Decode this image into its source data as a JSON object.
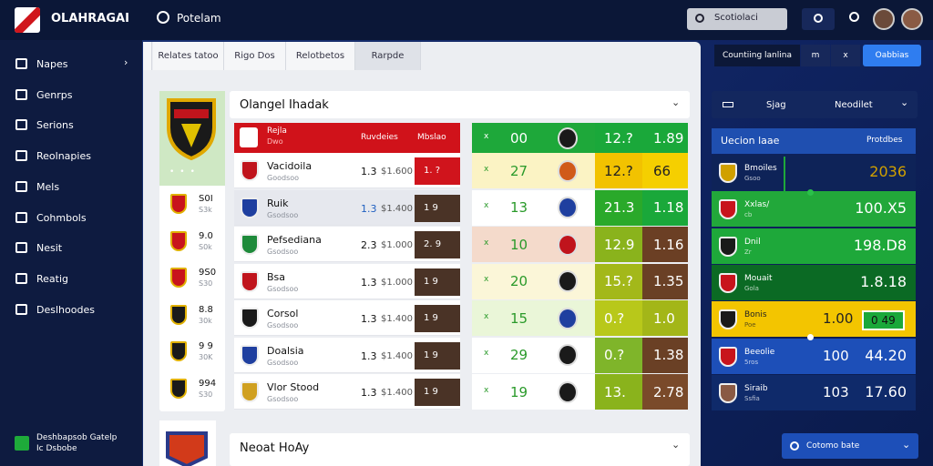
{
  "header": {
    "brand": "OLAHRAGAI",
    "section": "Potelam",
    "search": "Scotiolaci"
  },
  "sidebar": {
    "items": [
      "Napes",
      "Genrps",
      "Serions",
      "Reolnapies",
      "Mels",
      "Cohmbols",
      "Nesit",
      "Reatig",
      "Deslhoodes"
    ],
    "footer": {
      "title": "Deshbapsob Gatelp",
      "subtitle": "Ic Dsbobe"
    }
  },
  "tabs": [
    "Relates tatoo",
    "Rigo Dos",
    "Relotbetos",
    "Rarpde"
  ],
  "toolbar": {
    "filter": "Countiing lanlina",
    "btn1": "m",
    "btn2": "x",
    "primary": "Oabbias"
  },
  "left_list": [
    {
      "a": "S0I",
      "b": "S3k"
    },
    {
      "a": "9.0",
      "b": "S0k"
    },
    {
      "a": "9S0",
      "b": "S30"
    },
    {
      "a": "8.8",
      "b": "30k"
    },
    {
      "a": "9 9",
      "b": "30K"
    },
    {
      "a": "994",
      "b": "S30"
    }
  ],
  "table": {
    "title": "Olangel Ihadak",
    "head": {
      "team": "Rejla",
      "sub": "Dwo",
      "col1": "Ruvdeies",
      "col2": "Mbslao"
    },
    "rows": [
      {
        "team": "Vacidoila",
        "sub": "Goodsoo",
        "a": "1.3",
        "b": "$1.600",
        "c": "1. ?"
      },
      {
        "team": "Ruik",
        "sub": "Gsodsoo",
        "a": "1.3",
        "b": "$1.400",
        "c": "1 9"
      },
      {
        "team": "Pefsediana",
        "sub": "Gsodsoo",
        "a": "2.3",
        "b": "$1.000",
        "c": "2. 9"
      },
      {
        "team": "Bsa",
        "sub": "Gsodsoo",
        "a": "1.3",
        "b": "$1.000",
        "c": "1 9"
      },
      {
        "team": "Corsol",
        "sub": "Gsodsoo",
        "a": "1.3",
        "b": "$1.400",
        "c": "1 9"
      },
      {
        "team": "Doalsia",
        "sub": "Gsodsoo",
        "a": "1.3",
        "b": "$1.400",
        "c": "1 9"
      },
      {
        "team": "Vlor Stood",
        "sub": "Gsodsoo",
        "a": "1.3",
        "b": "$1.400",
        "c": "1 9"
      }
    ]
  },
  "odds": {
    "head": {
      "mark": "x",
      "l": "00",
      "m": "12.?",
      "r": "1.89"
    },
    "rows": [
      {
        "mark": "x",
        "l": "27",
        "m": "12.?",
        "r": "66"
      },
      {
        "mark": "x",
        "l": "13",
        "m": "21.3",
        "r": "1.18"
      },
      {
        "mark": "x",
        "l": "10",
        "m": "12.9",
        "r": "1.16"
      },
      {
        "mark": "x",
        "l": "20",
        "m": "15.?",
        "r": "1.35"
      },
      {
        "mark": "x",
        "l": "15",
        "m": "0.?",
        "r": "1.0"
      },
      {
        "mark": "x",
        "l": "29",
        "m": "0.?",
        "r": "1.38"
      },
      {
        "mark": "x",
        "l": "19",
        "m": "13.",
        "r": "2.78"
      }
    ]
  },
  "right": {
    "select1": "Sjag",
    "select2": "Neodilet",
    "head": {
      "title": "Uecion laae",
      "right": "Protdbes"
    },
    "rows": [
      {
        "name": "Bmoiles",
        "sub": "Gsoo",
        "mid": "",
        "val": "2036"
      },
      {
        "name": "Xxlas/",
        "sub": "cb",
        "mid": "",
        "val": "100.X5"
      },
      {
        "name": "Dnil",
        "sub": "Zr",
        "mid": "",
        "val": "198.D8"
      },
      {
        "name": "Mouait",
        "sub": "Gola",
        "mid": "",
        "val": "1.8.18"
      },
      {
        "name": "Bonis",
        "sub": "Poe",
        "mid": "1.00",
        "val": "0 49"
      },
      {
        "name": "Beeolie",
        "sub": "5ros",
        "mid": "100",
        "val": "44.20"
      },
      {
        "name": "Siraib",
        "sub": "Ssfia",
        "mid": "103",
        "val": "17.60"
      }
    ],
    "button": "Cotomo bate"
  },
  "bottom": {
    "title": "Neoat HoAy"
  }
}
